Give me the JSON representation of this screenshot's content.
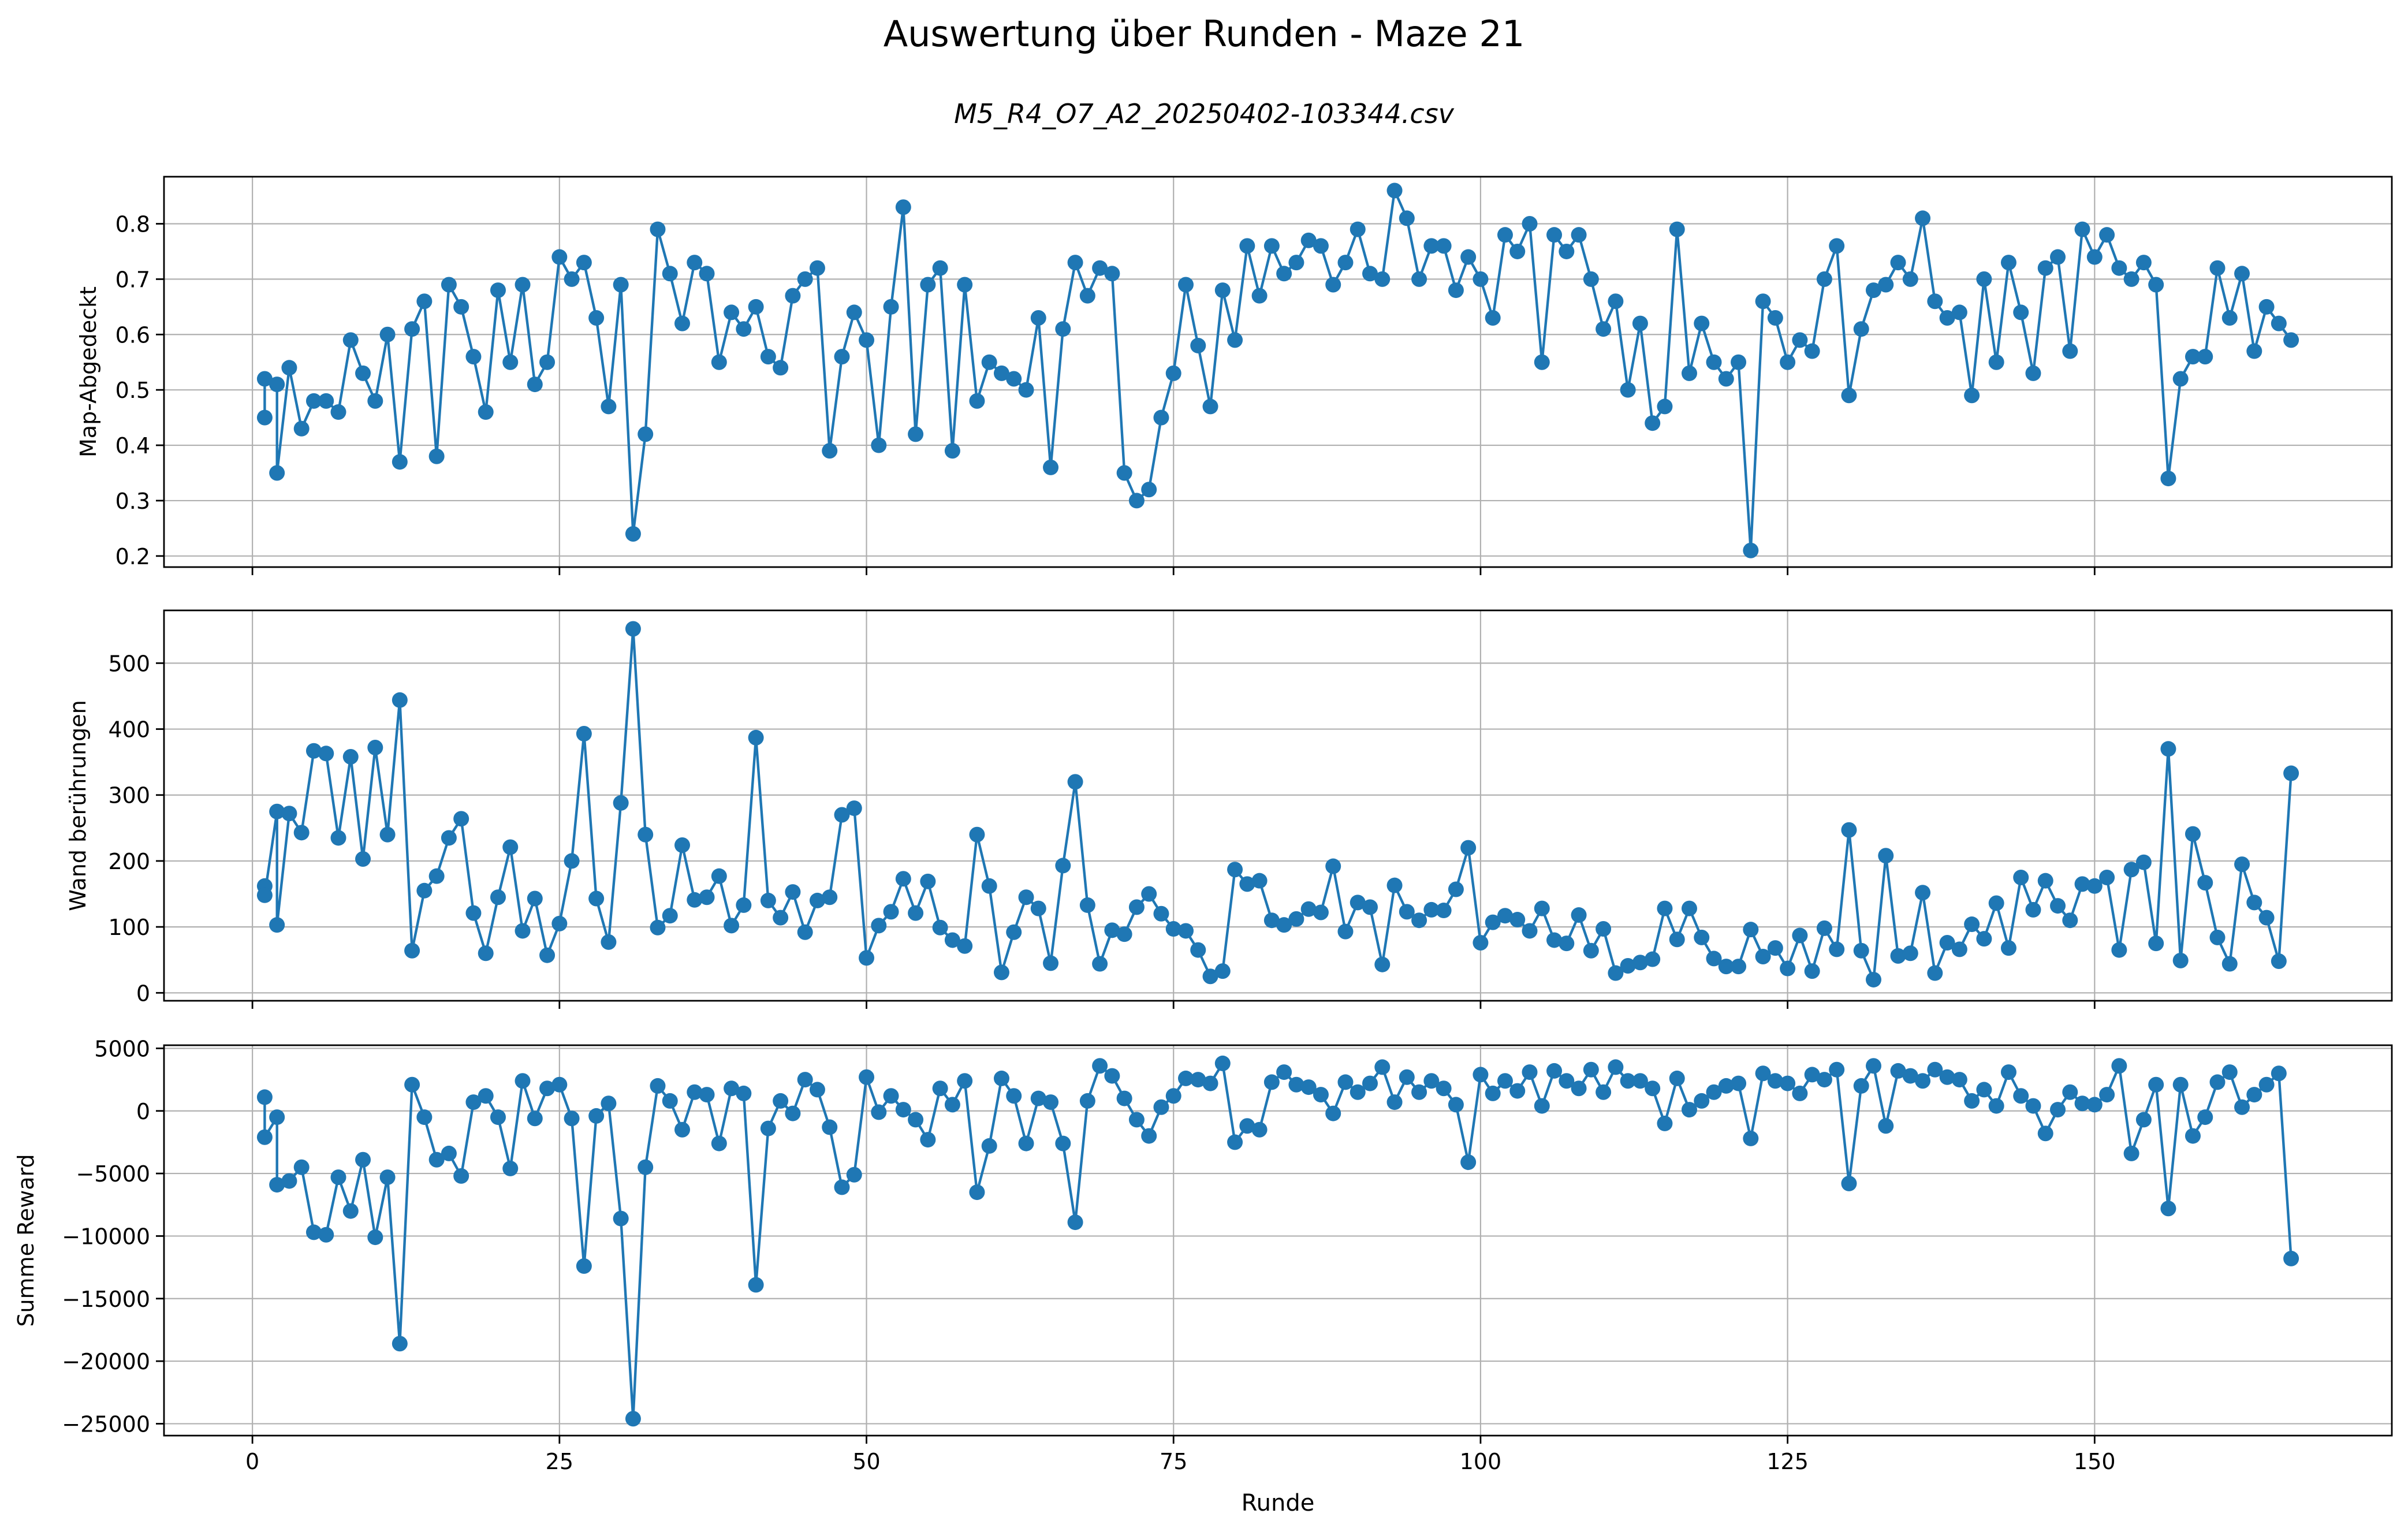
{
  "figure": {
    "title": "Auswertung über Runden - Maze 21",
    "subtitle": "M5_R4_O7_A2_20250402-103344.csv"
  },
  "colors": {
    "series": "#1f77b4",
    "grid": "#b0b0b0",
    "axes": "#000000"
  },
  "chart_data": [
    {
      "type": "line",
      "ylabel": "Map-Abgedeckt",
      "xlabel": "",
      "grid": true,
      "xlim": [
        -7.2,
        174.2
      ],
      "ylim": [
        0.18,
        0.885
      ],
      "xticks": [
        0,
        25,
        50,
        75,
        100,
        125,
        150
      ],
      "yticks": [
        0.2,
        0.3,
        0.4,
        0.5,
        0.6,
        0.7,
        0.8
      ],
      "ytick_labels": [
        "0.2",
        "0.3",
        "0.4",
        "0.5",
        "0.6",
        "0.7",
        "0.8"
      ],
      "x": [
        1,
        1,
        2,
        2,
        3,
        4,
        5,
        6,
        7,
        8,
        9,
        10,
        11,
        12,
        13,
        14,
        15,
        16,
        17,
        18,
        19,
        20,
        21,
        22,
        23,
        24,
        25,
        26,
        27,
        28,
        29,
        30,
        31,
        32,
        33,
        34,
        35,
        36,
        37,
        38,
        39,
        40,
        41,
        42,
        43,
        44,
        45,
        46,
        47,
        48,
        49,
        50,
        51,
        52,
        53,
        54,
        55,
        56,
        57,
        58,
        59,
        60,
        61,
        62,
        63,
        64,
        65,
        66,
        67,
        68,
        69,
        70,
        71,
        72,
        73,
        74,
        75,
        76,
        77,
        78,
        79,
        80,
        81,
        82,
        83,
        84,
        85,
        86,
        87,
        88,
        89,
        90,
        91,
        92,
        93,
        94,
        95,
        96,
        97,
        98,
        99,
        100,
        101,
        102,
        103,
        104,
        105,
        106,
        107,
        108,
        109,
        110,
        111,
        112,
        113,
        114,
        115,
        116,
        117,
        118,
        119,
        120,
        121,
        122,
        123,
        124,
        125,
        126,
        127,
        128,
        129,
        130,
        131,
        132,
        133,
        134,
        135,
        136,
        137,
        138,
        139,
        140,
        141,
        142,
        143,
        144,
        145,
        146,
        147,
        148,
        149,
        150,
        151,
        152,
        153,
        154,
        155,
        156,
        157,
        158,
        159,
        160,
        161,
        162,
        163,
        164,
        165,
        166
      ],
      "values": [
        0.45,
        0.52,
        0.51,
        0.35,
        0.54,
        0.43,
        0.48,
        0.48,
        0.46,
        0.59,
        0.53,
        0.48,
        0.6,
        0.37,
        0.61,
        0.66,
        0.38,
        0.69,
        0.65,
        0.56,
        0.46,
        0.68,
        0.55,
        0.69,
        0.51,
        0.55,
        0.74,
        0.7,
        0.73,
        0.63,
        0.47,
        0.69,
        0.24,
        0.42,
        0.79,
        0.71,
        0.62,
        0.73,
        0.71,
        0.55,
        0.64,
        0.61,
        0.65,
        0.56,
        0.54,
        0.67,
        0.7,
        0.72,
        0.39,
        0.56,
        0.64,
        0.59,
        0.4,
        0.65,
        0.83,
        0.42,
        0.69,
        0.72,
        0.39,
        0.69,
        0.48,
        0.55,
        0.53,
        0.52,
        0.5,
        0.63,
        0.36,
        0.61,
        0.73,
        0.67,
        0.72,
        0.71,
        0.35,
        0.3,
        0.32,
        0.45,
        0.53,
        0.69,
        0.58,
        0.47,
        0.68,
        0.59,
        0.76,
        0.67,
        0.76,
        0.71,
        0.73,
        0.77,
        0.76,
        0.69,
        0.73,
        0.79,
        0.71,
        0.7,
        0.86,
        0.81,
        0.7,
        0.76,
        0.76,
        0.68,
        0.74,
        0.7,
        0.63,
        0.78,
        0.75,
        0.8,
        0.55,
        0.78,
        0.75,
        0.78,
        0.7,
        0.61,
        0.66,
        0.5,
        0.62,
        0.44,
        0.47,
        0.79,
        0.53,
        0.62,
        0.55,
        0.52,
        0.55,
        0.21,
        0.66,
        0.63,
        0.55,
        0.59,
        0.57,
        0.7,
        0.76,
        0.49,
        0.61,
        0.68,
        0.69,
        0.73,
        0.7,
        0.81,
        0.66,
        0.63,
        0.64,
        0.49,
        0.7,
        0.55,
        0.73,
        0.64,
        0.53,
        0.72,
        0.74,
        0.57,
        0.79,
        0.74,
        0.78,
        0.72,
        0.7,
        0.73,
        0.69,
        0.34,
        0.52,
        0.56,
        0.56,
        0.72,
        0.63,
        0.71,
        0.57,
        0.65,
        0.62,
        0.59
      ]
    },
    {
      "type": "line",
      "ylabel": "Wand berührungen",
      "xlabel": "",
      "grid": true,
      "xlim": [
        -7.2,
        174.2
      ],
      "ylim": [
        -12,
        580
      ],
      "xticks": [
        0,
        25,
        50,
        75,
        100,
        125,
        150
      ],
      "yticks": [
        0,
        100,
        200,
        300,
        400,
        500
      ],
      "ytick_labels": [
        "0",
        "100",
        "200",
        "300",
        "400",
        "500"
      ],
      "x": [
        1,
        1,
        2,
        2,
        3,
        4,
        5,
        6,
        7,
        8,
        9,
        10,
        11,
        12,
        13,
        14,
        15,
        16,
        17,
        18,
        19,
        20,
        21,
        22,
        23,
        24,
        25,
        26,
        27,
        28,
        29,
        30,
        31,
        32,
        33,
        34,
        35,
        36,
        37,
        38,
        39,
        40,
        41,
        42,
        43,
        44,
        45,
        46,
        47,
        48,
        49,
        50,
        51,
        52,
        53,
        54,
        55,
        56,
        57,
        58,
        59,
        60,
        61,
        62,
        63,
        64,
        65,
        66,
        67,
        68,
        69,
        70,
        71,
        72,
        73,
        74,
        75,
        76,
        77,
        78,
        79,
        80,
        81,
        82,
        83,
        84,
        85,
        86,
        87,
        88,
        89,
        90,
        91,
        92,
        93,
        94,
        95,
        96,
        97,
        98,
        99,
        100,
        101,
        102,
        103,
        104,
        105,
        106,
        107,
        108,
        109,
        110,
        111,
        112,
        113,
        114,
        115,
        116,
        117,
        118,
        119,
        120,
        121,
        122,
        123,
        124,
        125,
        126,
        127,
        128,
        129,
        130,
        131,
        132,
        133,
        134,
        135,
        136,
        137,
        138,
        139,
        140,
        141,
        142,
        143,
        144,
        145,
        146,
        147,
        148,
        149,
        150,
        151,
        152,
        153,
        154,
        155,
        156,
        157,
        158,
        159,
        160,
        161,
        162,
        163,
        164,
        165,
        166
      ],
      "values": [
        162,
        148,
        275,
        103,
        272,
        243,
        367,
        363,
        235,
        358,
        203,
        372,
        240,
        444,
        64,
        155,
        177,
        235,
        264,
        121,
        60,
        145,
        221,
        94,
        143,
        57,
        105,
        200,
        393,
        143,
        77,
        288,
        552,
        240,
        99,
        117,
        224,
        141,
        145,
        177,
        102,
        133,
        387,
        140,
        114,
        153,
        92,
        140,
        145,
        270,
        280,
        53,
        102,
        123,
        173,
        121,
        169,
        99,
        80,
        71,
        240,
        162,
        31,
        92,
        145,
        128,
        45,
        193,
        320,
        133,
        44,
        95,
        89,
        130,
        150,
        120,
        97,
        94,
        65,
        25,
        33,
        187,
        165,
        170,
        110,
        103,
        112,
        127,
        122,
        192,
        93,
        137,
        130,
        43,
        163,
        123,
        110,
        126,
        125,
        157,
        220,
        76,
        107,
        117,
        111,
        94,
        128,
        80,
        75,
        118,
        64,
        97,
        30,
        41,
        46,
        51,
        128,
        81,
        128,
        84,
        52,
        40,
        40,
        96,
        55,
        68,
        37,
        87,
        33,
        98,
        66,
        247,
        64,
        20,
        208,
        56,
        60,
        152,
        30,
        76,
        66,
        104,
        82,
        136,
        68,
        175,
        126,
        170,
        132,
        110,
        165,
        162,
        175,
        65,
        187,
        198,
        75,
        370,
        49,
        241,
        167,
        84,
        44,
        195,
        137,
        114,
        48,
        333
      ]
    },
    {
      "type": "line",
      "ylabel": "Summe Reward",
      "xlabel": "Runde",
      "grid": true,
      "xlim": [
        -7.2,
        174.2
      ],
      "ylim": [
        -25950,
        5250
      ],
      "xticks": [
        0,
        25,
        50,
        75,
        100,
        125,
        150
      ],
      "xtick_labels": [
        "0",
        "25",
        "50",
        "75",
        "100",
        "125",
        "150"
      ],
      "yticks": [
        -25000,
        -20000,
        -15000,
        -10000,
        -5000,
        0,
        5000
      ],
      "ytick_labels": [
        "−25000",
        "−20000",
        "−15000",
        "−10000",
        "−5000",
        "0",
        "5000"
      ],
      "x": [
        1,
        1,
        2,
        2,
        3,
        4,
        5,
        6,
        7,
        8,
        9,
        10,
        11,
        12,
        13,
        14,
        15,
        16,
        17,
        18,
        19,
        20,
        21,
        22,
        23,
        24,
        25,
        26,
        27,
        28,
        29,
        30,
        31,
        32,
        33,
        34,
        35,
        36,
        37,
        38,
        39,
        40,
        41,
        42,
        43,
        44,
        45,
        46,
        47,
        48,
        49,
        50,
        51,
        52,
        53,
        54,
        55,
        56,
        57,
        58,
        59,
        60,
        61,
        62,
        63,
        64,
        65,
        66,
        67,
        68,
        69,
        70,
        71,
        72,
        73,
        74,
        75,
        76,
        77,
        78,
        79,
        80,
        81,
        82,
        83,
        84,
        85,
        86,
        87,
        88,
        89,
        90,
        91,
        92,
        93,
        94,
        95,
        96,
        97,
        98,
        99,
        100,
        101,
        102,
        103,
        104,
        105,
        106,
        107,
        108,
        109,
        110,
        111,
        112,
        113,
        114,
        115,
        116,
        117,
        118,
        119,
        120,
        121,
        122,
        123,
        124,
        125,
        126,
        127,
        128,
        129,
        130,
        131,
        132,
        133,
        134,
        135,
        136,
        137,
        138,
        139,
        140,
        141,
        142,
        143,
        144,
        145,
        146,
        147,
        148,
        149,
        150,
        151,
        152,
        153,
        154,
        155,
        156,
        157,
        158,
        159,
        160,
        161,
        162,
        163,
        164,
        165,
        166
      ],
      "values": [
        1100,
        -2100,
        -500,
        -5900,
        -5600,
        -4500,
        -9700,
        -9900,
        -5300,
        -8000,
        -3900,
        -10100,
        -5300,
        -18600,
        2100,
        -500,
        -3900,
        -3400,
        -5200,
        700,
        1200,
        -500,
        -4600,
        2400,
        -600,
        1800,
        2100,
        -600,
        -12400,
        -400,
        600,
        -8600,
        -24600,
        -4500,
        2000,
        800,
        -1500,
        1500,
        1300,
        -2600,
        1800,
        1400,
        -13900,
        -1400,
        800,
        -200,
        2500,
        1700,
        -1300,
        -6100,
        -5100,
        2700,
        -100,
        1200,
        100,
        -700,
        -2300,
        1800,
        500,
        2400,
        -6500,
        -2800,
        2600,
        1200,
        -2600,
        1000,
        700,
        -2600,
        -8900,
        800,
        3600,
        2800,
        1000,
        -700,
        -2000,
        300,
        1200,
        2600,
        2500,
        2200,
        3800,
        -2500,
        -1200,
        -1500,
        2300,
        3100,
        2100,
        1900,
        1300,
        -200,
        2300,
        1500,
        2200,
        3500,
        700,
        2700,
        1500,
        2400,
        1800,
        500,
        -4100,
        2900,
        1400,
        2400,
        1600,
        3100,
        400,
        3200,
        2400,
        1800,
        3300,
        1500,
        3500,
        2400,
        2400,
        1800,
        -1000,
        2600,
        100,
        800,
        1500,
        2000,
        2200,
        -2200,
        3000,
        2400,
        2200,
        1400,
        2900,
        2500,
        3300,
        -5800,
        2000,
        3600,
        -1200,
        3200,
        2800,
        2400,
        3300,
        2700,
        2500,
        800,
        1700,
        400,
        3100,
        1200,
        400,
        -1800,
        100,
        1500,
        600,
        500,
        1300,
        3600,
        -3400,
        -700,
        2100,
        -7800,
        2100,
        -2000,
        -500,
        2300,
        3100,
        300,
        1300,
        2100,
        3000,
        -11800
      ]
    }
  ]
}
